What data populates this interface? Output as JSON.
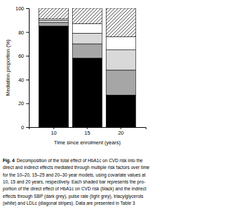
{
  "chart_data": {
    "type": "bar",
    "stacked": true,
    "title": "Fig. 4",
    "annotations": [
      "Decomposition of the total effect of HbA1c on CVD risk into the",
      "direct and indirect effects mediated through multiple risk factors over time",
      "for the 10–20, 15–25 and 20–30 year models, using covariate values at",
      "10, 15 and 20 years, respectively. Each shaded bar represents the pro-",
      "portion of the direct effect of HbA1c on CVD risk (black) and the indirect",
      "effects through SBP (dark grey), pulse rate (light grey), triacylglycerols",
      "(white) and LDLc (diagonal stripes). Data are presented in Table 3"
    ],
    "x_label": "Time since enrolment (years)",
    "y_label": "Mediation proportion (%)",
    "categories": [
      "10",
      "15",
      "20"
    ],
    "series": [
      {
        "color": "#000000",
        "values": [
          85,
          58,
          27
        ]
      },
      {
        "color": "#a6a6a6",
        "values": [
          3,
          12,
          21
        ]
      },
      {
        "color": "#d9d9d9",
        "values": [
          2,
          9,
          17
        ]
      },
      {
        "color": "#ffffff",
        "values": [
          1,
          8,
          11
        ]
      },
      {
        "color": "#ffffff",
        "line_style": "diagonal",
        "values": [
          9,
          13,
          24
        ]
      }
    ],
    "ylim": [
      0,
      100
    ],
    "yticks": [
      0,
      20,
      40,
      60,
      80,
      100
    ],
    "grid": false
  }
}
